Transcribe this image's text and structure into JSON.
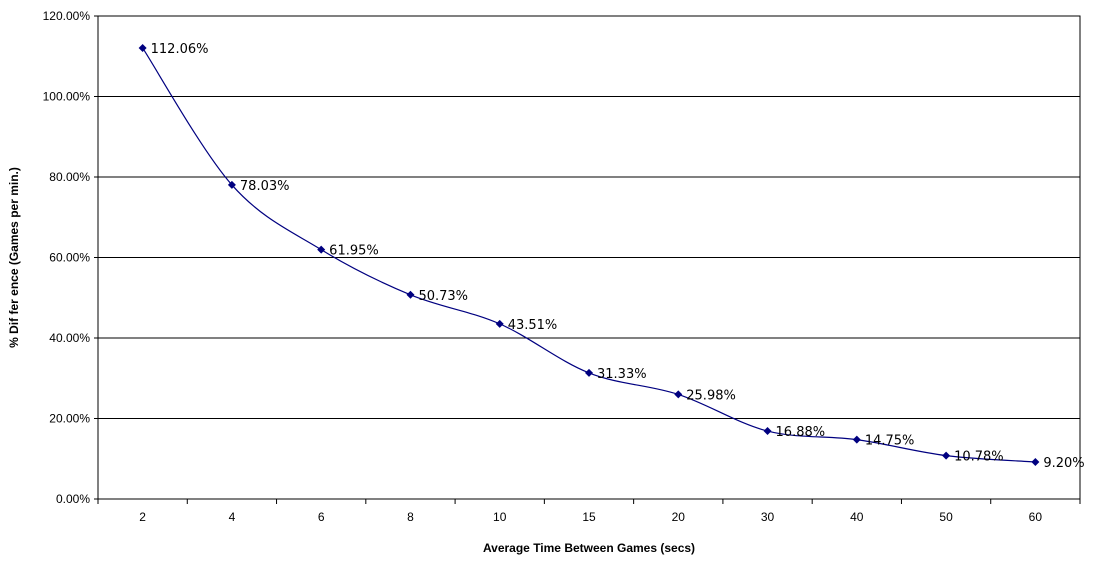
{
  "chart_data": {
    "type": "line",
    "title": "",
    "xlabel": "Average Time Between Games (secs)",
    "ylabel": "% Dif fer ence (Games per min.)",
    "categories": [
      "2",
      "4",
      "6",
      "8",
      "10",
      "15",
      "20",
      "30",
      "40",
      "50",
      "60"
    ],
    "series": [
      {
        "values": [
          112.06,
          78.03,
          61.95,
          50.73,
          43.51,
          31.33,
          25.98,
          16.88,
          14.75,
          10.78,
          9.2
        ],
        "data_labels": [
          "112.06%",
          "78.03%",
          "61.95%",
          "50.73%",
          "43.51%",
          "31.33%",
          "25.98%",
          "16.88%",
          "14.75%",
          "10.78%",
          "9.20%"
        ],
        "color": "#000080",
        "marker": "diamond",
        "smoothed": true
      }
    ],
    "ylim": [
      0,
      120
    ],
    "yticks": [
      "0.00%",
      "20.00%",
      "40.00%",
      "60.00%",
      "80.00%",
      "100.00%",
      "120.00%"
    ],
    "grid": "horizontal",
    "legend": "none"
  }
}
